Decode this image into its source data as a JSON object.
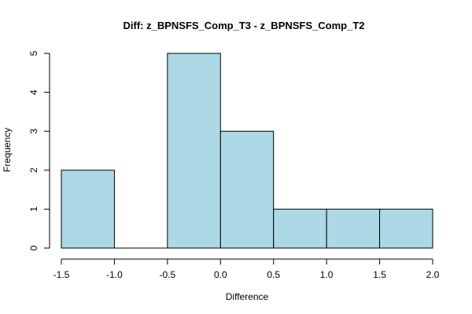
{
  "chart_data": {
    "type": "bar",
    "title": "Diff: z_BPNSFS_Comp_T3 - z_BPNSFS_Comp_T2",
    "xlabel": "Difference",
    "ylabel": "Frequency",
    "bin_edges": [
      -1.5,
      -1.0,
      -0.5,
      0.0,
      0.5,
      1.0,
      1.5,
      2.0
    ],
    "values": [
      2,
      0,
      5,
      3,
      1,
      1,
      1
    ],
    "xlim": [
      -1.5,
      2.0
    ],
    "ylim": [
      0,
      5
    ],
    "x_ticks": [
      -1.5,
      -1.0,
      -0.5,
      0.0,
      0.5,
      1.0,
      1.5,
      2.0
    ],
    "x_tick_labels": [
      "-1.5",
      "-1.0",
      "-0.5",
      "0.0",
      "0.5",
      "1.0",
      "1.5",
      "2.0"
    ],
    "y_ticks": [
      0,
      1,
      2,
      3,
      4,
      5
    ],
    "y_tick_labels": [
      "0",
      "1",
      "2",
      "3",
      "4",
      "5"
    ],
    "grid": false,
    "bar_color": "#add8e6",
    "bar_edge_color": "#000000"
  }
}
